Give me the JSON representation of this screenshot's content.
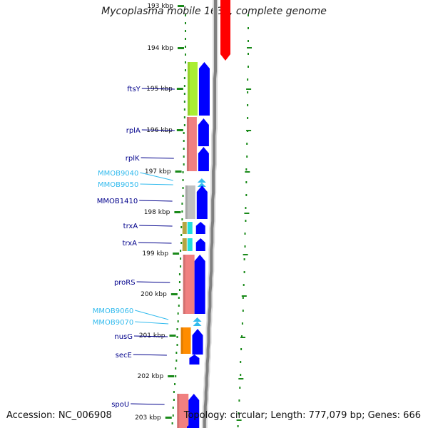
{
  "title": "Mycoplasma mobile 163K, complete genome",
  "footer": {
    "accession": "Accession: NC_006908",
    "summary": "Topology: circular; Length: 777,079 bp; Genes: 666"
  },
  "colors": {
    "forward_strand": "#0000ff",
    "reverse_strand": "#ff0000",
    "backbone": "#808080",
    "tick": "#1a8a1a",
    "label_dark": "#00008b",
    "label_light": "#33bbee"
  },
  "ticks": [
    {
      "label": "193 kbp"
    },
    {
      "label": "194 kbp"
    },
    {
      "label": "195 kbp"
    },
    {
      "label": "196 kbp"
    },
    {
      "label": "197 kbp"
    },
    {
      "label": "198 kbp"
    },
    {
      "label": "199 kbp"
    },
    {
      "label": "200 kbp"
    },
    {
      "label": "201 kbp"
    },
    {
      "label": "202 kbp"
    },
    {
      "label": "203 kbp"
    }
  ],
  "genes": [
    {
      "name": "ftsY",
      "label_style": "dark",
      "cog_color": "#aaee33"
    },
    {
      "name": "rplA",
      "label_style": "dark",
      "cog_color": "#f08080"
    },
    {
      "name": "rplK",
      "label_style": "dark",
      "cog_color": "#f08080"
    },
    {
      "name": "MMOB9040",
      "label_style": "light",
      "cog_color": ""
    },
    {
      "name": "MMOB9050",
      "label_style": "light",
      "cog_color": ""
    },
    {
      "name": "MMOB1410",
      "label_style": "dark",
      "cog_color": "#c0c0c0"
    },
    {
      "name": "trxA",
      "label_style": "dark",
      "cog_color": "#b5a642"
    },
    {
      "name": "trxA",
      "label_style": "dark",
      "cog_color": "#b5a642"
    },
    {
      "name": "proRS",
      "label_style": "dark",
      "cog_color": "#f08080"
    },
    {
      "name": "MMOB9060",
      "label_style": "light",
      "cog_color": ""
    },
    {
      "name": "MMOB9070",
      "label_style": "light",
      "cog_color": ""
    },
    {
      "name": "nusG",
      "label_style": "dark",
      "cog_color": "#ff8c00"
    },
    {
      "name": "secE",
      "label_style": "dark",
      "cog_color": ""
    },
    {
      "name": "spoU",
      "label_style": "dark",
      "cog_color": "#f08080"
    }
  ]
}
